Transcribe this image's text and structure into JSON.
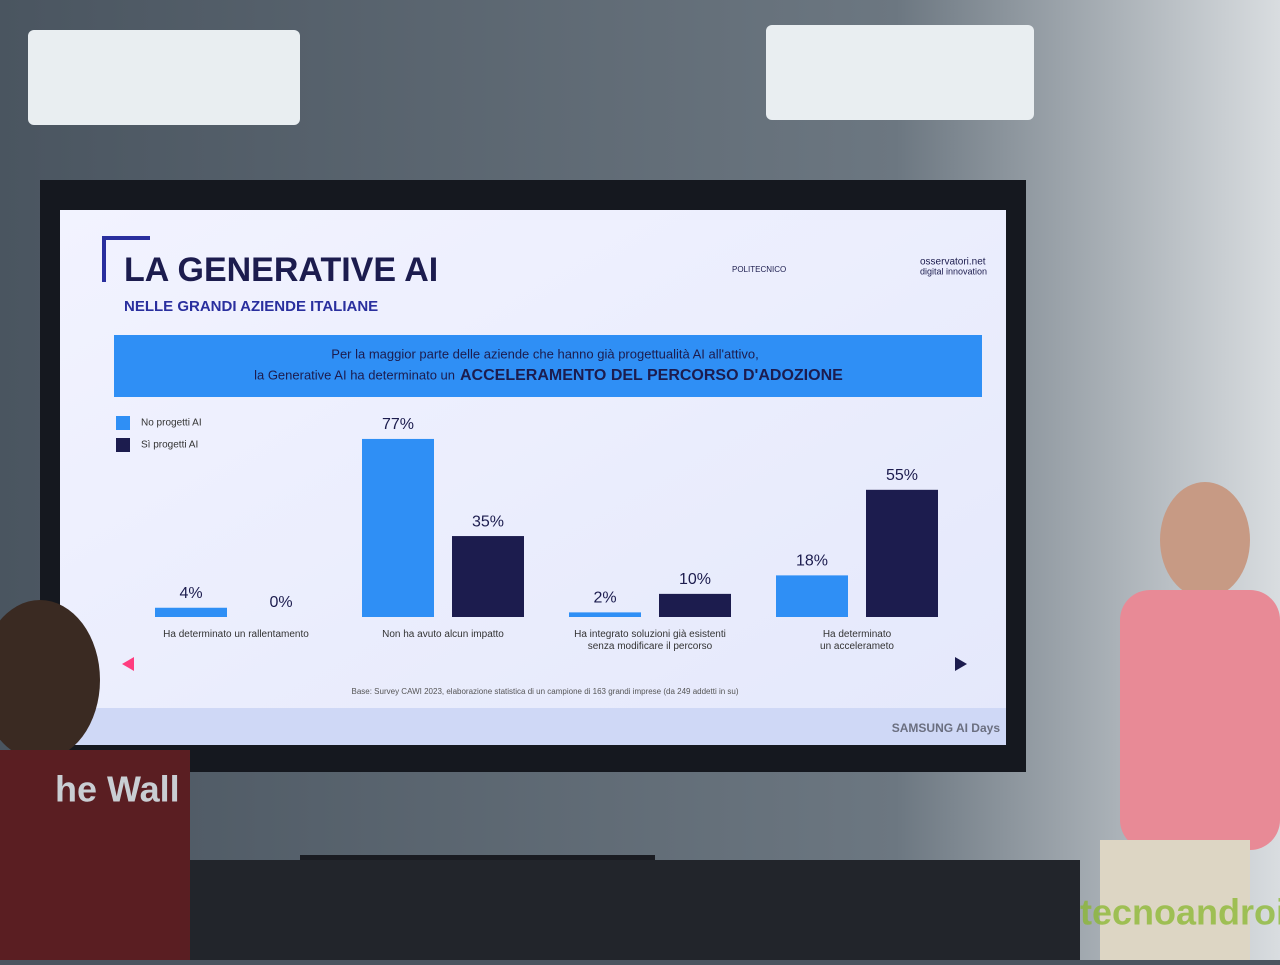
{
  "chart_data": {
    "type": "bar",
    "title": "LA GENERATIVE AI",
    "subtitle": "NELLE GRANDI AZIENDE ITALIANE",
    "banner": [
      "Per la  maggior parte delle aziende che hanno già progettualità AI all'attivo,",
      "la Generative AI ha determinato un",
      "ACCELERAMENTO DEL PERCORSO D'ADOZIONE"
    ],
    "categories": [
      "Ha determinato un rallentamento",
      "Non ha avuto alcun impatto",
      "Ha integrato soluzioni già esistenti\nsenza modificare il percorso",
      "Ha determinato\nun accelerameto"
    ],
    "series": [
      {
        "name": "No progetti AI",
        "color": "#2f8ff5",
        "values": [
          4,
          77,
          2,
          18
        ],
        "value_labels": [
          "4%",
          "77%",
          "2%",
          "18%"
        ]
      },
      {
        "name": "Sì progetti AI",
        "color": "#1c1c4e",
        "values": [
          0,
          35,
          10,
          55
        ],
        "value_labels": [
          "0%",
          "35%",
          "10%",
          "55%"
        ]
      }
    ],
    "ylim": [
      0,
      80
    ],
    "legend": "top-left",
    "source": "Base: Survey CAWI 2023, elaborazione statistica di un campione di 163 grandi imprese (da 249 addetti in su)"
  },
  "scene": {
    "logo_left": "POLITECNICO",
    "logo_right": [
      "osservatori.net",
      "digital innovation"
    ],
    "event": "SAMSUNG AI Days",
    "wall_sign": "he Wall",
    "watermark": "tecnoandroid"
  }
}
